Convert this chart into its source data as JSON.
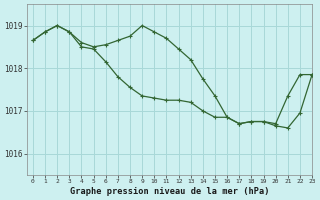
{
  "title": "Graphe pression niveau de la mer (hPa)",
  "background_color": "#cdf0f0",
  "grid_color": "#a8d8d8",
  "line_color": "#336633",
  "xlim": [
    -0.5,
    23
  ],
  "ylim": [
    1015.5,
    1019.5
  ],
  "yticks": [
    1016,
    1017,
    1018,
    1019
  ],
  "xticks": [
    0,
    1,
    2,
    3,
    4,
    5,
    6,
    7,
    8,
    9,
    10,
    11,
    12,
    13,
    14,
    15,
    16,
    17,
    18,
    19,
    20,
    21,
    22,
    23
  ],
  "series1_x": [
    0,
    1,
    2,
    3,
    4,
    5,
    6,
    7,
    8,
    9,
    10,
    11,
    12,
    13,
    14,
    15,
    16,
    17,
    18,
    19,
    20,
    21,
    22,
    23
  ],
  "series1_y": [
    1018.65,
    1018.85,
    1019.0,
    1018.85,
    1018.6,
    1018.5,
    1018.55,
    1018.65,
    1018.75,
    1019.0,
    1018.85,
    1018.7,
    1018.45,
    1018.2,
    1017.75,
    1017.35,
    1016.85,
    1016.7,
    1016.75,
    1016.75,
    1016.7,
    1017.35,
    1017.85,
    1017.85
  ],
  "series2_x": [
    0,
    1,
    2,
    3,
    4,
    5,
    6,
    7,
    8,
    9,
    10,
    11,
    12,
    13,
    14,
    15,
    16,
    17,
    18,
    19,
    20,
    21,
    22,
    23
  ],
  "series2_y": [
    1018.65,
    1018.85,
    1019.0,
    1018.85,
    1018.5,
    1018.45,
    1018.15,
    1017.8,
    1017.55,
    1017.35,
    1017.3,
    1017.25,
    1017.25,
    1017.2,
    1017.0,
    1016.85,
    1016.85,
    1016.7,
    1016.75,
    1016.75,
    1016.65,
    1016.6,
    1016.95,
    1017.85
  ]
}
